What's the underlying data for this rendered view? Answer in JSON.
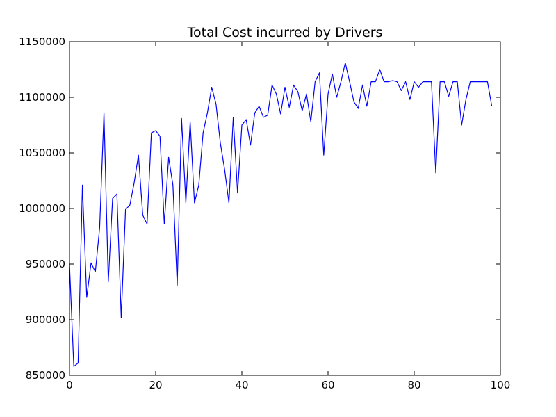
{
  "chart_data": {
    "type": "line",
    "title": "Total Cost incurred by Drivers",
    "xlabel": "",
    "ylabel": "",
    "xlim": [
      0,
      100
    ],
    "ylim": [
      850000,
      1150000
    ],
    "x_ticks": [
      0,
      20,
      40,
      60,
      80,
      100
    ],
    "x_tick_labels": [
      "0",
      "20",
      "40",
      "60",
      "80",
      "100"
    ],
    "y_ticks": [
      850000,
      900000,
      950000,
      1000000,
      1050000,
      1100000,
      1150000
    ],
    "y_tick_labels": [
      "850000",
      "900000",
      "950000",
      "1000000",
      "1050000",
      "1100000",
      "1150000"
    ],
    "grid": false,
    "legend": "none",
    "series": [
      {
        "color": "#0000ff",
        "x": [
          0,
          1,
          2,
          3,
          4,
          5,
          6,
          7,
          8,
          9,
          10,
          11,
          12,
          13,
          14,
          15,
          16,
          17,
          18,
          19,
          20,
          21,
          22,
          23,
          24,
          25,
          26,
          27,
          28,
          29,
          30,
          31,
          32,
          33,
          34,
          35,
          36,
          37,
          38,
          39,
          40,
          41,
          42,
          43,
          44,
          45,
          46,
          47,
          48,
          49,
          50,
          51,
          52,
          53,
          54,
          55,
          56,
          57,
          58,
          59,
          60,
          61,
          62,
          63,
          64,
          65,
          66,
          67,
          68,
          69,
          70,
          71,
          72,
          73,
          74,
          75,
          76,
          77,
          78,
          79,
          80,
          81,
          82,
          83,
          84,
          85,
          86,
          87,
          88,
          89,
          90,
          91,
          92,
          93,
          94,
          95,
          96,
          97,
          98
        ],
        "y": [
          950000,
          858000,
          861000,
          1021000,
          920000,
          951000,
          943000,
          983000,
          1086000,
          934000,
          1009000,
          1013000,
          902000,
          999000,
          1003000,
          1023000,
          1048000,
          994000,
          986000,
          1068000,
          1070000,
          1065000,
          986000,
          1046000,
          1021000,
          931000,
          1081000,
          1005000,
          1078000,
          1005000,
          1021000,
          1068000,
          1086000,
          1109000,
          1094000,
          1059000,
          1035000,
          1005000,
          1082000,
          1014000,
          1075000,
          1080000,
          1057000,
          1086000,
          1092000,
          1082000,
          1084000,
          1111000,
          1103000,
          1085000,
          1109000,
          1091000,
          1111000,
          1105000,
          1088000,
          1103000,
          1078000,
          1114000,
          1122000,
          1048000,
          1103000,
          1121000,
          1100000,
          1114000,
          1131000,
          1114000,
          1096000,
          1090000,
          1111000,
          1092000,
          1114000,
          1114000,
          1125000,
          1114000,
          1114000,
          1115000,
          1114000,
          1106000,
          1114000,
          1098000,
          1114000,
          1109000,
          1114000,
          1114000,
          1114000,
          1032000,
          1114000,
          1114000,
          1101000,
          1114000,
          1114000,
          1075000,
          1098000,
          1114000,
          1114000,
          1114000,
          1114000,
          1114000,
          1092000
        ]
      }
    ]
  }
}
